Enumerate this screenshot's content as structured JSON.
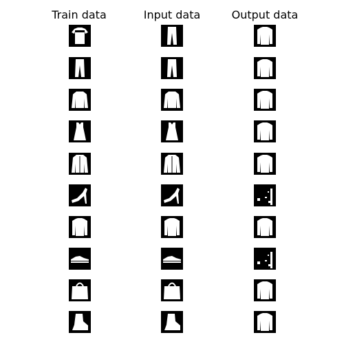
{
  "columns": [
    {
      "title": "Train data"
    },
    {
      "title": "Input data"
    },
    {
      "title": "Output data"
    }
  ],
  "rows": [
    [
      "tshirt-icon",
      "trousers-icon",
      "shirt-icon"
    ],
    [
      "trousers-icon",
      "trousers-icon",
      "shirt-icon"
    ],
    [
      "pullover-icon",
      "pullover-icon",
      "shirt-icon"
    ],
    [
      "dress-icon",
      "dress-icon",
      "shirt-icon"
    ],
    [
      "coat-icon",
      "coat-icon",
      "shirt-icon"
    ],
    [
      "sandal-icon",
      "sandal-icon",
      "noisy-glyph-icon"
    ],
    [
      "shirt-icon",
      "shirt-icon",
      "shirt-icon"
    ],
    [
      "sneaker-icon",
      "sneaker-icon",
      "noisy-glyph-icon"
    ],
    [
      "bag-icon",
      "bag-icon",
      "shirt-icon"
    ],
    [
      "ankle-boot-icon",
      "ankle-boot-icon",
      "shirt-icon"
    ]
  ],
  "colors": {
    "tile_background": "#000000",
    "garment": "#ffffff",
    "page_background": "#ffffff"
  }
}
